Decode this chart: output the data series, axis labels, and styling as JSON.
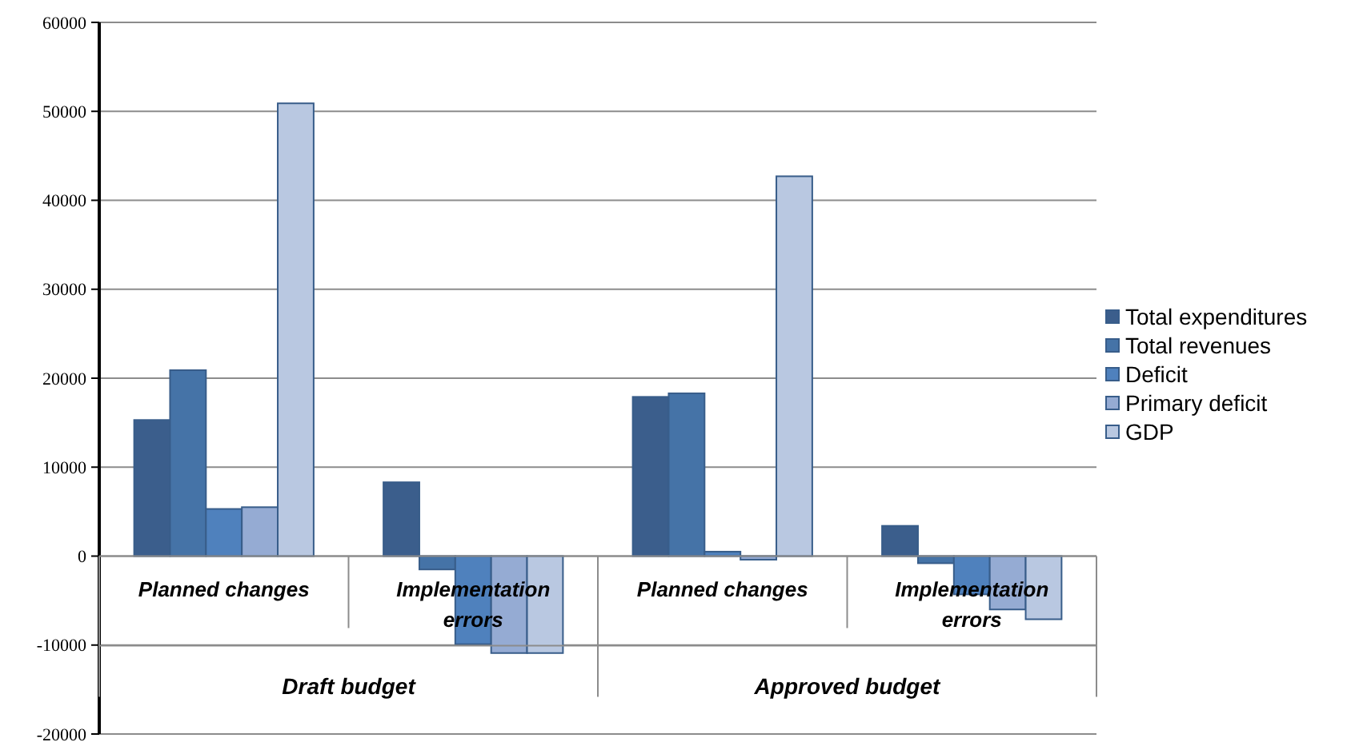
{
  "chart_data": {
    "type": "bar",
    "categories": [
      "Planned changes",
      "Implementation errors",
      "Planned changes",
      "Implementation errors"
    ],
    "series": [
      {
        "name": "Total expenditures",
        "color": "#3b5e8c",
        "values": [
          15300,
          8300,
          17900,
          3400
        ]
      },
      {
        "name": "Total revenues",
        "color": "#4573a7",
        "values": [
          20900,
          -1500,
          18300,
          -800
        ]
      },
      {
        "name": "Deficit",
        "color": "#4f81bd",
        "values": [
          5300,
          -9900,
          500,
          -4300
        ]
      },
      {
        "name": "Primary deficit",
        "color": "#95abd3",
        "values": [
          5500,
          -10900,
          -400,
          -6000
        ]
      },
      {
        "name": "GDP",
        "color": "#b9c8e1",
        "values": [
          50900,
          -10900,
          42700,
          -7100
        ]
      }
    ],
    "annotations": [
      "Draft budget",
      "Approved budget"
    ],
    "ylim": [
      -20000,
      60000
    ],
    "yticks": [
      -20000,
      -10000,
      0,
      10000,
      20000,
      30000,
      40000,
      50000,
      60000
    ],
    "grid": "y",
    "legend": "right"
  }
}
